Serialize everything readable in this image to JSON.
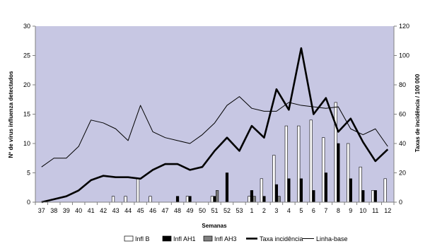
{
  "chart_data": {
    "type": "bar",
    "xlabel": "Semanas",
    "ylabel": "Nº de vírus influenza detectados",
    "y2label": "Taxas de incidência / 100 000",
    "ylim": [
      0,
      30
    ],
    "y2lim": [
      0,
      120
    ],
    "yticks": [
      "0",
      "5",
      "10",
      "15",
      "20",
      "25",
      "30"
    ],
    "y2ticks": [
      "0",
      "20",
      "40",
      "60",
      "80",
      "100",
      "120"
    ],
    "grid": false,
    "legend_position": "bottom",
    "categories": [
      "37",
      "38",
      "39",
      "40",
      "41",
      "42",
      "43",
      "44",
      "45",
      "46",
      "47",
      "48",
      "49",
      "50",
      "51",
      "52",
      "53",
      "1",
      "2",
      "3",
      "4",
      "5",
      "6",
      "7",
      "8",
      "9",
      "10",
      "11",
      "12"
    ],
    "bar_series": [
      {
        "name": "Infl B",
        "color": "#ffffff",
        "values": [
          0,
          0,
          0,
          0,
          0,
          0,
          1,
          1,
          4,
          1,
          0,
          0,
          1,
          0,
          1,
          0,
          0,
          1,
          4,
          8,
          13,
          13,
          14,
          11,
          17,
          10,
          6,
          2,
          4
        ]
      },
      {
        "name": "Infl AH1",
        "color": "#000000",
        "values": [
          0,
          0,
          0,
          0,
          0,
          0,
          0,
          0,
          0,
          0,
          0,
          1,
          1,
          0,
          1,
          5,
          0,
          2,
          1,
          3,
          4,
          4,
          2,
          5,
          10,
          4,
          2,
          2,
          0
        ]
      },
      {
        "name": "Infl AH3",
        "color": "#808080",
        "values": [
          0,
          0,
          0,
          0,
          0,
          0,
          0,
          0,
          0,
          0,
          0,
          0,
          0,
          0,
          2,
          0,
          0,
          1,
          0,
          1,
          0,
          0,
          0,
          0,
          0,
          0,
          0,
          0,
          0
        ]
      }
    ],
    "line_series": [
      {
        "name": "Taxa incidência",
        "color": "#000000",
        "style": "thick",
        "values": [
          0,
          2,
          4,
          8,
          15,
          18,
          17,
          17,
          16,
          22,
          26,
          26,
          22,
          24,
          35,
          44,
          35,
          52,
          44,
          77,
          63,
          105,
          60,
          71,
          48,
          57,
          41,
          28,
          36
        ]
      },
      {
        "name": "Linha-base",
        "color": "#000000",
        "style": "thin",
        "values": [
          24,
          30,
          30,
          38,
          56,
          54,
          50,
          42,
          66,
          48,
          44,
          42,
          40,
          46,
          54,
          66,
          72,
          64,
          62,
          62,
          68,
          66,
          65,
          64,
          65,
          50,
          46,
          50,
          38
        ]
      }
    ]
  }
}
